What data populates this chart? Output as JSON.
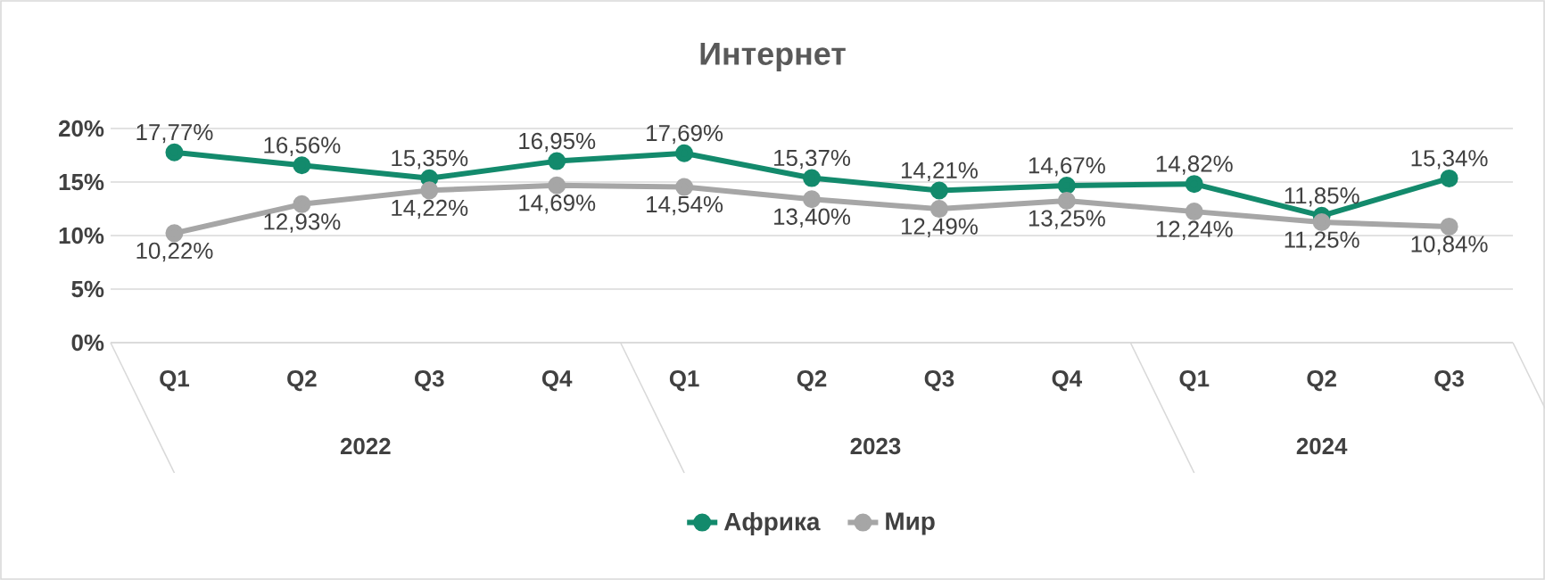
{
  "chart_data": {
    "type": "line",
    "title": "Интернет",
    "categories": [
      "Q1",
      "Q2",
      "Q3",
      "Q4",
      "Q1",
      "Q2",
      "Q3",
      "Q4",
      "Q1",
      "Q2",
      "Q3"
    ],
    "series": [
      {
        "name": "Африка",
        "color": "#138a6c",
        "values": [
          17.77,
          16.56,
          15.35,
          16.95,
          17.69,
          15.37,
          14.21,
          14.67,
          14.82,
          11.85,
          15.34
        ],
        "value_labels": [
          "17,77%",
          "16,56%",
          "15,35%",
          "16,95%",
          "17,69%",
          "15,37%",
          "14,21%",
          "14,67%",
          "14,82%",
          "11,85%",
          "15,34%"
        ]
      },
      {
        "name": "Мир",
        "color": "#a6a6a6",
        "values": [
          10.22,
          12.93,
          14.22,
          14.69,
          14.54,
          13.4,
          12.49,
          13.25,
          12.24,
          11.25,
          10.84
        ],
        "value_labels": [
          "10,22%",
          "12,93%",
          "14,22%",
          "14,69%",
          "14,54%",
          "13,40%",
          "12,49%",
          "13,25%",
          "12,24%",
          "11,25%",
          "10,84%"
        ]
      }
    ],
    "annotations": [
      "2022",
      "2023",
      "2024"
    ],
    "ylim": [
      0,
      20
    ],
    "yticks": [
      {
        "value": 0,
        "label": "0%"
      },
      {
        "value": 5,
        "label": "5%"
      },
      {
        "value": 10,
        "label": "10%"
      },
      {
        "value": 15,
        "label": "15%"
      },
      {
        "value": 20,
        "label": "20%"
      }
    ],
    "grid": "y",
    "legend": "bottom",
    "marker": "circle",
    "line_style": "solid"
  }
}
